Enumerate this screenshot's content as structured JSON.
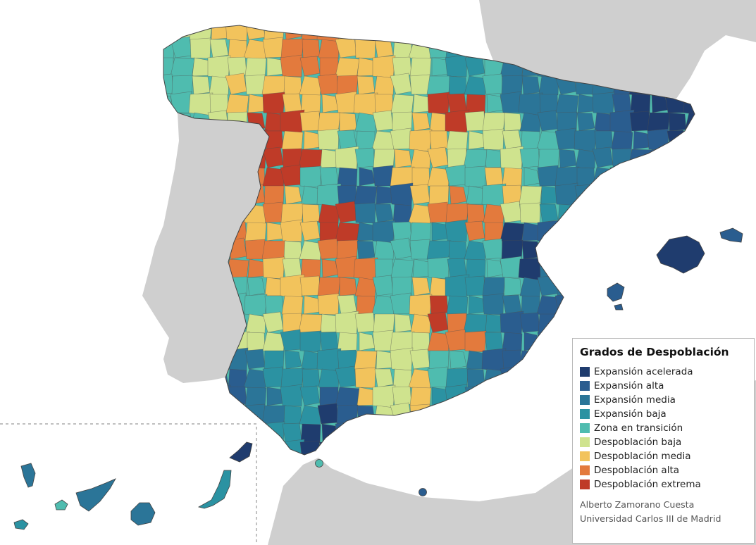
{
  "legend": {
    "title": "Grados de Despoblación",
    "items": [
      {
        "label": "Expansión acelerada",
        "color": "#1f3c6e"
      },
      {
        "label": "Expansión alta",
        "color": "#2a5d8f"
      },
      {
        "label": "Expansión media",
        "color": "#2b7598"
      },
      {
        "label": "Expansión baja",
        "color": "#2b92a2"
      },
      {
        "label": "Zona en transición",
        "color": "#4fbcaf"
      },
      {
        "label": "Despoblación baja",
        "color": "#cfe38e"
      },
      {
        "label": "Despoblación media",
        "color": "#f2c35c"
      },
      {
        "label": "Despoblación alta",
        "color": "#e37a3d"
      },
      {
        "label": "Despoblación extrema",
        "color": "#bf3b28"
      }
    ]
  },
  "credits": {
    "author": "Alberto Zamorano Cuesta",
    "institution": "Universidad Carlos III de Madrid"
  },
  "colors": {
    "sea": "#ffffff",
    "neighbor_land": "#cfcfcf",
    "border": "#555555",
    "inset_frame": "#9a9a9a"
  }
}
